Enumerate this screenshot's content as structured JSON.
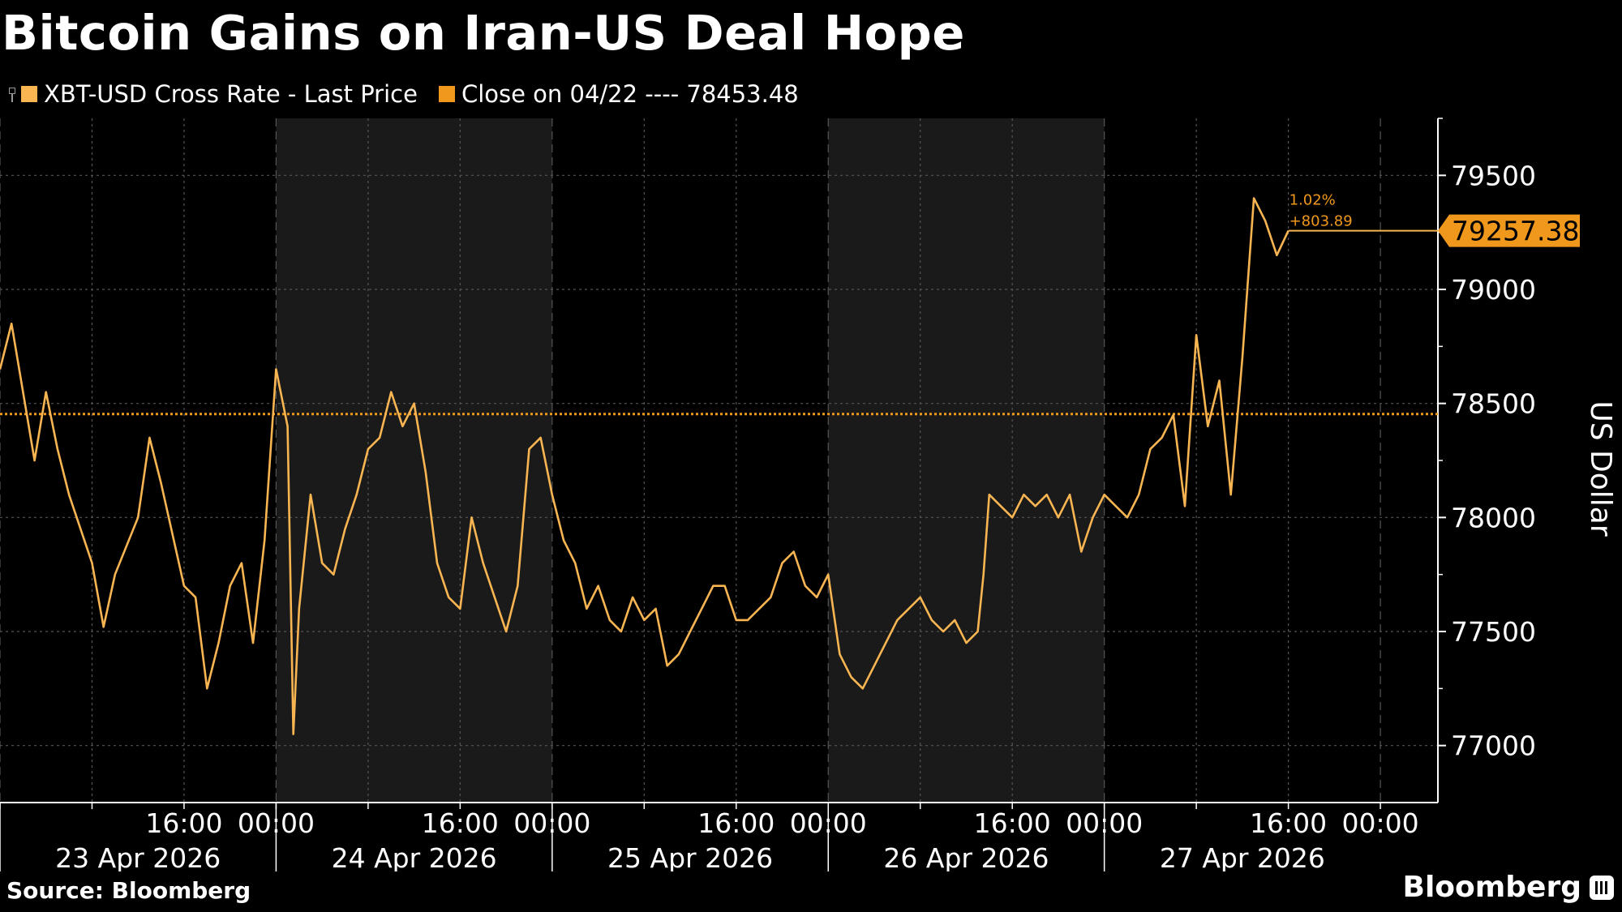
{
  "header": {
    "title": "Bitcoin Gains on Iran-US Deal Hope"
  },
  "legend": {
    "series_label": "XBT-USD Cross Rate - Last Price",
    "close_label": "Close on 04/22 ---- 78453.48"
  },
  "footer": {
    "source": "Source: Bloomberg",
    "brand": "Bloomberg"
  },
  "colors": {
    "background": "#000000",
    "weekend_shade": "#1a1a1a",
    "series": "#f8b552",
    "close_line": "#f0981c",
    "grid": "#555555",
    "text": "#ffffff"
  },
  "chart_data": {
    "type": "line",
    "title": "Bitcoin Gains on Iran-US Deal Hope",
    "ylabel": "US Dollar",
    "ylim": [
      76750,
      79750
    ],
    "yticks": [
      77000,
      77500,
      78000,
      78500,
      79000,
      79500
    ],
    "xlim": [
      "2026-04-23 00:00",
      "2026-04-28 05:00"
    ],
    "x_tick_labels": [
      "16:00",
      "00:00",
      "16:00",
      "00:00",
      "16:00",
      "00:00",
      "16:00",
      "00:00",
      "16:00",
      "00:00"
    ],
    "x_date_labels": [
      "23 Apr 2026",
      "24 Apr 2026",
      "25 Apr 2026",
      "26 Apr 2026",
      "27 Apr 2026"
    ],
    "grid": true,
    "shaded_days": [
      "24 Apr 2026",
      "26 Apr 2026"
    ],
    "reference_line": {
      "label": "Close on 04/22",
      "value": 78453.48
    },
    "last_value": 79257.38,
    "change_pct": "1.02%",
    "change_abs": "+803.89",
    "series": [
      {
        "name": "XBT-USD Cross Rate - Last Price",
        "points": [
          [
            "2026-04-23 00:00",
            78650
          ],
          [
            "2026-04-23 01:00",
            78850
          ],
          [
            "2026-04-23 02:00",
            78550
          ],
          [
            "2026-04-23 03:00",
            78250
          ],
          [
            "2026-04-23 04:00",
            78550
          ],
          [
            "2026-04-23 05:00",
            78300
          ],
          [
            "2026-04-23 06:00",
            78100
          ],
          [
            "2026-04-23 08:00",
            77800
          ],
          [
            "2026-04-23 09:00",
            77520
          ],
          [
            "2026-04-23 10:00",
            77750
          ],
          [
            "2026-04-23 12:00",
            78000
          ],
          [
            "2026-04-23 13:00",
            78350
          ],
          [
            "2026-04-23 14:00",
            78150
          ],
          [
            "2026-04-23 16:00",
            77700
          ],
          [
            "2026-04-23 17:00",
            77650
          ],
          [
            "2026-04-23 18:00",
            77250
          ],
          [
            "2026-04-23 19:00",
            77450
          ],
          [
            "2026-04-23 20:00",
            77700
          ],
          [
            "2026-04-23 21:00",
            77800
          ],
          [
            "2026-04-23 22:00",
            77450
          ],
          [
            "2026-04-23 23:00",
            77900
          ],
          [
            "2026-04-24 00:00",
            78650
          ],
          [
            "2026-04-24 01:00",
            78400
          ],
          [
            "2026-04-24 01:30",
            77050
          ],
          [
            "2026-04-24 02:00",
            77600
          ],
          [
            "2026-04-24 03:00",
            78100
          ],
          [
            "2026-04-24 04:00",
            77800
          ],
          [
            "2026-04-24 05:00",
            77750
          ],
          [
            "2026-04-24 06:00",
            77950
          ],
          [
            "2026-04-24 07:00",
            78100
          ],
          [
            "2026-04-24 08:00",
            78300
          ],
          [
            "2026-04-24 09:00",
            78350
          ],
          [
            "2026-04-24 10:00",
            78550
          ],
          [
            "2026-04-24 11:00",
            78400
          ],
          [
            "2026-04-24 12:00",
            78500
          ],
          [
            "2026-04-24 13:00",
            78200
          ],
          [
            "2026-04-24 14:00",
            77800
          ],
          [
            "2026-04-24 15:00",
            77650
          ],
          [
            "2026-04-24 16:00",
            77600
          ],
          [
            "2026-04-24 17:00",
            78000
          ],
          [
            "2026-04-24 18:00",
            77800
          ],
          [
            "2026-04-24 19:00",
            77650
          ],
          [
            "2026-04-24 20:00",
            77500
          ],
          [
            "2026-04-24 21:00",
            77700
          ],
          [
            "2026-04-24 22:00",
            78300
          ],
          [
            "2026-04-24 23:00",
            78350
          ],
          [
            "2026-04-25 00:00",
            78100
          ],
          [
            "2026-04-25 01:00",
            77900
          ],
          [
            "2026-04-25 02:00",
            77800
          ],
          [
            "2026-04-25 03:00",
            77600
          ],
          [
            "2026-04-25 04:00",
            77700
          ],
          [
            "2026-04-25 05:00",
            77550
          ],
          [
            "2026-04-25 06:00",
            77500
          ],
          [
            "2026-04-25 07:00",
            77650
          ],
          [
            "2026-04-25 08:00",
            77550
          ],
          [
            "2026-04-25 09:00",
            77600
          ],
          [
            "2026-04-25 10:00",
            77350
          ],
          [
            "2026-04-25 11:00",
            77400
          ],
          [
            "2026-04-25 12:00",
            77500
          ],
          [
            "2026-04-25 13:00",
            77600
          ],
          [
            "2026-04-25 14:00",
            77700
          ],
          [
            "2026-04-25 15:00",
            77700
          ],
          [
            "2026-04-25 16:00",
            77550
          ],
          [
            "2026-04-25 17:00",
            77550
          ],
          [
            "2026-04-25 18:00",
            77600
          ],
          [
            "2026-04-25 19:00",
            77650
          ],
          [
            "2026-04-25 20:00",
            77800
          ],
          [
            "2026-04-25 21:00",
            77850
          ],
          [
            "2026-04-25 22:00",
            77700
          ],
          [
            "2026-04-25 23:00",
            77650
          ],
          [
            "2026-04-26 00:00",
            77750
          ],
          [
            "2026-04-26 01:00",
            77400
          ],
          [
            "2026-04-26 02:00",
            77300
          ],
          [
            "2026-04-26 03:00",
            77250
          ],
          [
            "2026-04-26 04:00",
            77350
          ],
          [
            "2026-04-26 05:00",
            77450
          ],
          [
            "2026-04-26 06:00",
            77550
          ],
          [
            "2026-04-26 07:00",
            77600
          ],
          [
            "2026-04-26 08:00",
            77650
          ],
          [
            "2026-04-26 09:00",
            77550
          ],
          [
            "2026-04-26 10:00",
            77500
          ],
          [
            "2026-04-26 11:00",
            77550
          ],
          [
            "2026-04-26 12:00",
            77450
          ],
          [
            "2026-04-26 13:00",
            77500
          ],
          [
            "2026-04-26 13:30",
            77750
          ],
          [
            "2026-04-26 14:00",
            78100
          ],
          [
            "2026-04-26 15:00",
            78050
          ],
          [
            "2026-04-26 16:00",
            78000
          ],
          [
            "2026-04-26 17:00",
            78100
          ],
          [
            "2026-04-26 18:00",
            78050
          ],
          [
            "2026-04-26 19:00",
            78100
          ],
          [
            "2026-04-26 20:00",
            78000
          ],
          [
            "2026-04-26 21:00",
            78100
          ],
          [
            "2026-04-26 22:00",
            77850
          ],
          [
            "2026-04-26 23:00",
            78000
          ],
          [
            "2026-04-27 00:00",
            78100
          ],
          [
            "2026-04-27 01:00",
            78050
          ],
          [
            "2026-04-27 02:00",
            78000
          ],
          [
            "2026-04-27 03:00",
            78100
          ],
          [
            "2026-04-27 04:00",
            78300
          ],
          [
            "2026-04-27 05:00",
            78350
          ],
          [
            "2026-04-27 06:00",
            78450
          ],
          [
            "2026-04-27 07:00",
            78050
          ],
          [
            "2026-04-27 08:00",
            78800
          ],
          [
            "2026-04-27 09:00",
            78400
          ],
          [
            "2026-04-27 10:00",
            78600
          ],
          [
            "2026-04-27 11:00",
            78100
          ],
          [
            "2026-04-27 12:00",
            78700
          ],
          [
            "2026-04-27 13:00",
            79400
          ],
          [
            "2026-04-27 14:00",
            79300
          ],
          [
            "2026-04-27 15:00",
            79150
          ],
          [
            "2026-04-27 16:00",
            79257.38
          ]
        ]
      }
    ]
  }
}
